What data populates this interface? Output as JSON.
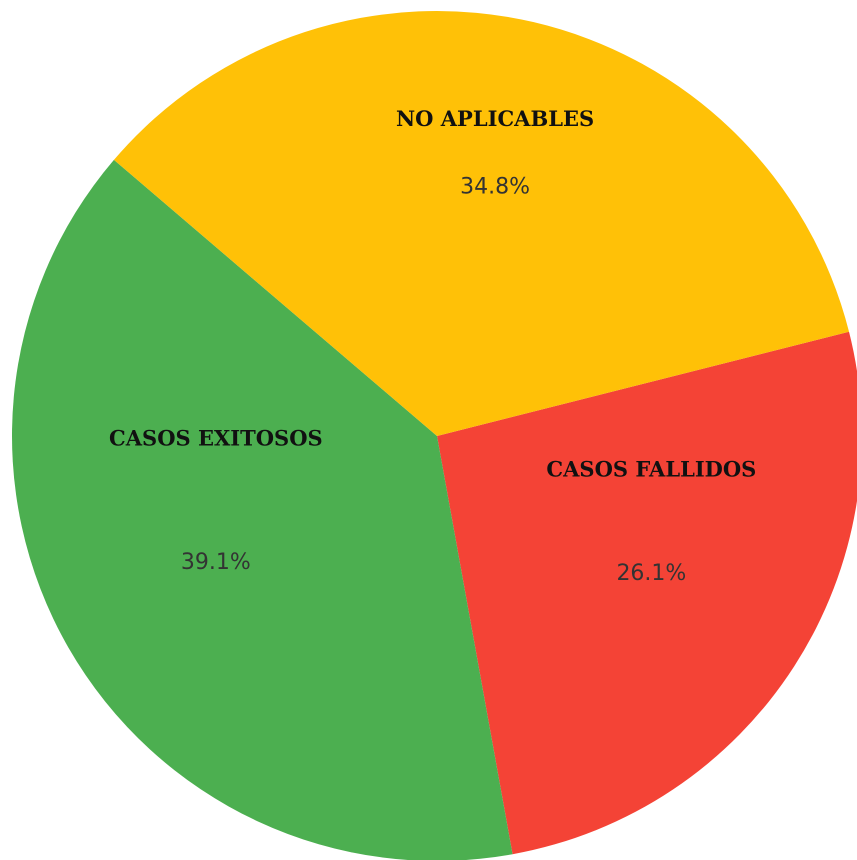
{
  "chart_data": {
    "type": "pie",
    "categories": [
      "CASOS FALLIDOS",
      "CASOS EXITOSOS",
      "NO APLICABLES"
    ],
    "values": [
      26.1,
      39.1,
      34.8
    ],
    "value_labels": [
      "26.1%",
      "39.1%",
      "34.8%"
    ],
    "colors": [
      "#f44336",
      "#4caf50",
      "#ffc107"
    ]
  }
}
